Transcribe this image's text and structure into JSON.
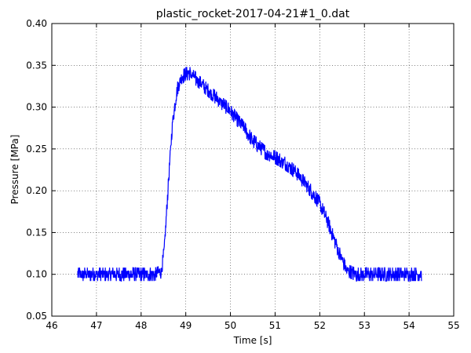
{
  "chart_data": {
    "type": "line",
    "title": "plastic_rocket-2017-04-21#1_0.dat",
    "xlabel": "Time [s]",
    "ylabel": "Pressure [MPa]",
    "xlim": [
      46,
      55
    ],
    "ylim": [
      0.05,
      0.4
    ],
    "xticks": [
      "46",
      "47",
      "48",
      "49",
      "50",
      "51",
      "52",
      "53",
      "54",
      "55"
    ],
    "yticks": [
      "0.05",
      "0.10",
      "0.15",
      "0.20",
      "0.25",
      "0.30",
      "0.35",
      "0.40"
    ],
    "grid": true,
    "noise_amplitude": 0.008,
    "series": [
      {
        "color": "#0000ff",
        "x": [
          46.58,
          47.0,
          47.5,
          48.0,
          48.3,
          48.45,
          48.52,
          48.6,
          48.7,
          48.8,
          48.9,
          49.0,
          49.1,
          49.2,
          49.5,
          49.8,
          50.0,
          50.3,
          50.5,
          50.8,
          51.0,
          51.3,
          51.5,
          51.8,
          52.0,
          52.2,
          52.4,
          52.6,
          52.8,
          53.2,
          53.6,
          54.0,
          54.28
        ],
        "y": [
          0.1,
          0.1,
          0.1,
          0.1,
          0.1,
          0.103,
          0.13,
          0.2,
          0.28,
          0.32,
          0.335,
          0.34,
          0.34,
          0.335,
          0.32,
          0.305,
          0.295,
          0.275,
          0.26,
          0.245,
          0.24,
          0.23,
          0.22,
          0.2,
          0.185,
          0.16,
          0.13,
          0.105,
          0.1,
          0.1,
          0.1,
          0.1,
          0.1
        ]
      }
    ]
  }
}
